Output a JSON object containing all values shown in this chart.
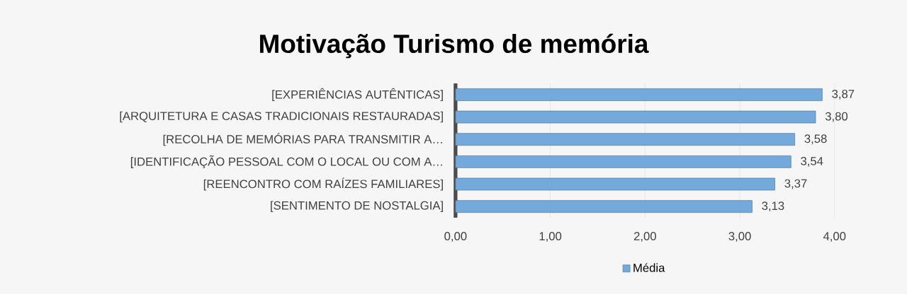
{
  "chart_data": {
    "type": "bar",
    "orientation": "horizontal",
    "title": "Motivação Turismo de memória",
    "categories": [
      "[EXPERIÊNCIAS AUTÊNTICAS]",
      "[ARQUITETURA E CASAS TRADICIONAIS RESTAURADAS]",
      "[RECOLHA DE MEMÓRIAS PARA TRANSMITIR A…",
      "[IDENTIFICAÇÃO PESSOAL COM O LOCAL OU COM A…",
      "[REENCONTRO COM RAÍZES FAMILIARES]",
      "[SENTIMENTO DE NOSTALGIA]"
    ],
    "series": [
      {
        "name": "Média",
        "color": "#74aadb",
        "values": [
          3.87,
          3.8,
          3.58,
          3.54,
          3.37,
          3.13
        ],
        "value_labels": [
          "3,87",
          "3,80",
          "3,58",
          "3,54",
          "3,37",
          "3,13"
        ]
      }
    ],
    "xlim": [
      0,
      4
    ],
    "xticks": [
      {
        "value": 0,
        "label": "0,00"
      },
      {
        "value": 1,
        "label": "1,00"
      },
      {
        "value": 2,
        "label": "2,00"
      },
      {
        "value": 3,
        "label": "3,00"
      },
      {
        "value": 4,
        "label": "4,00"
      }
    ],
    "grid": "x",
    "legend": "bottom"
  }
}
